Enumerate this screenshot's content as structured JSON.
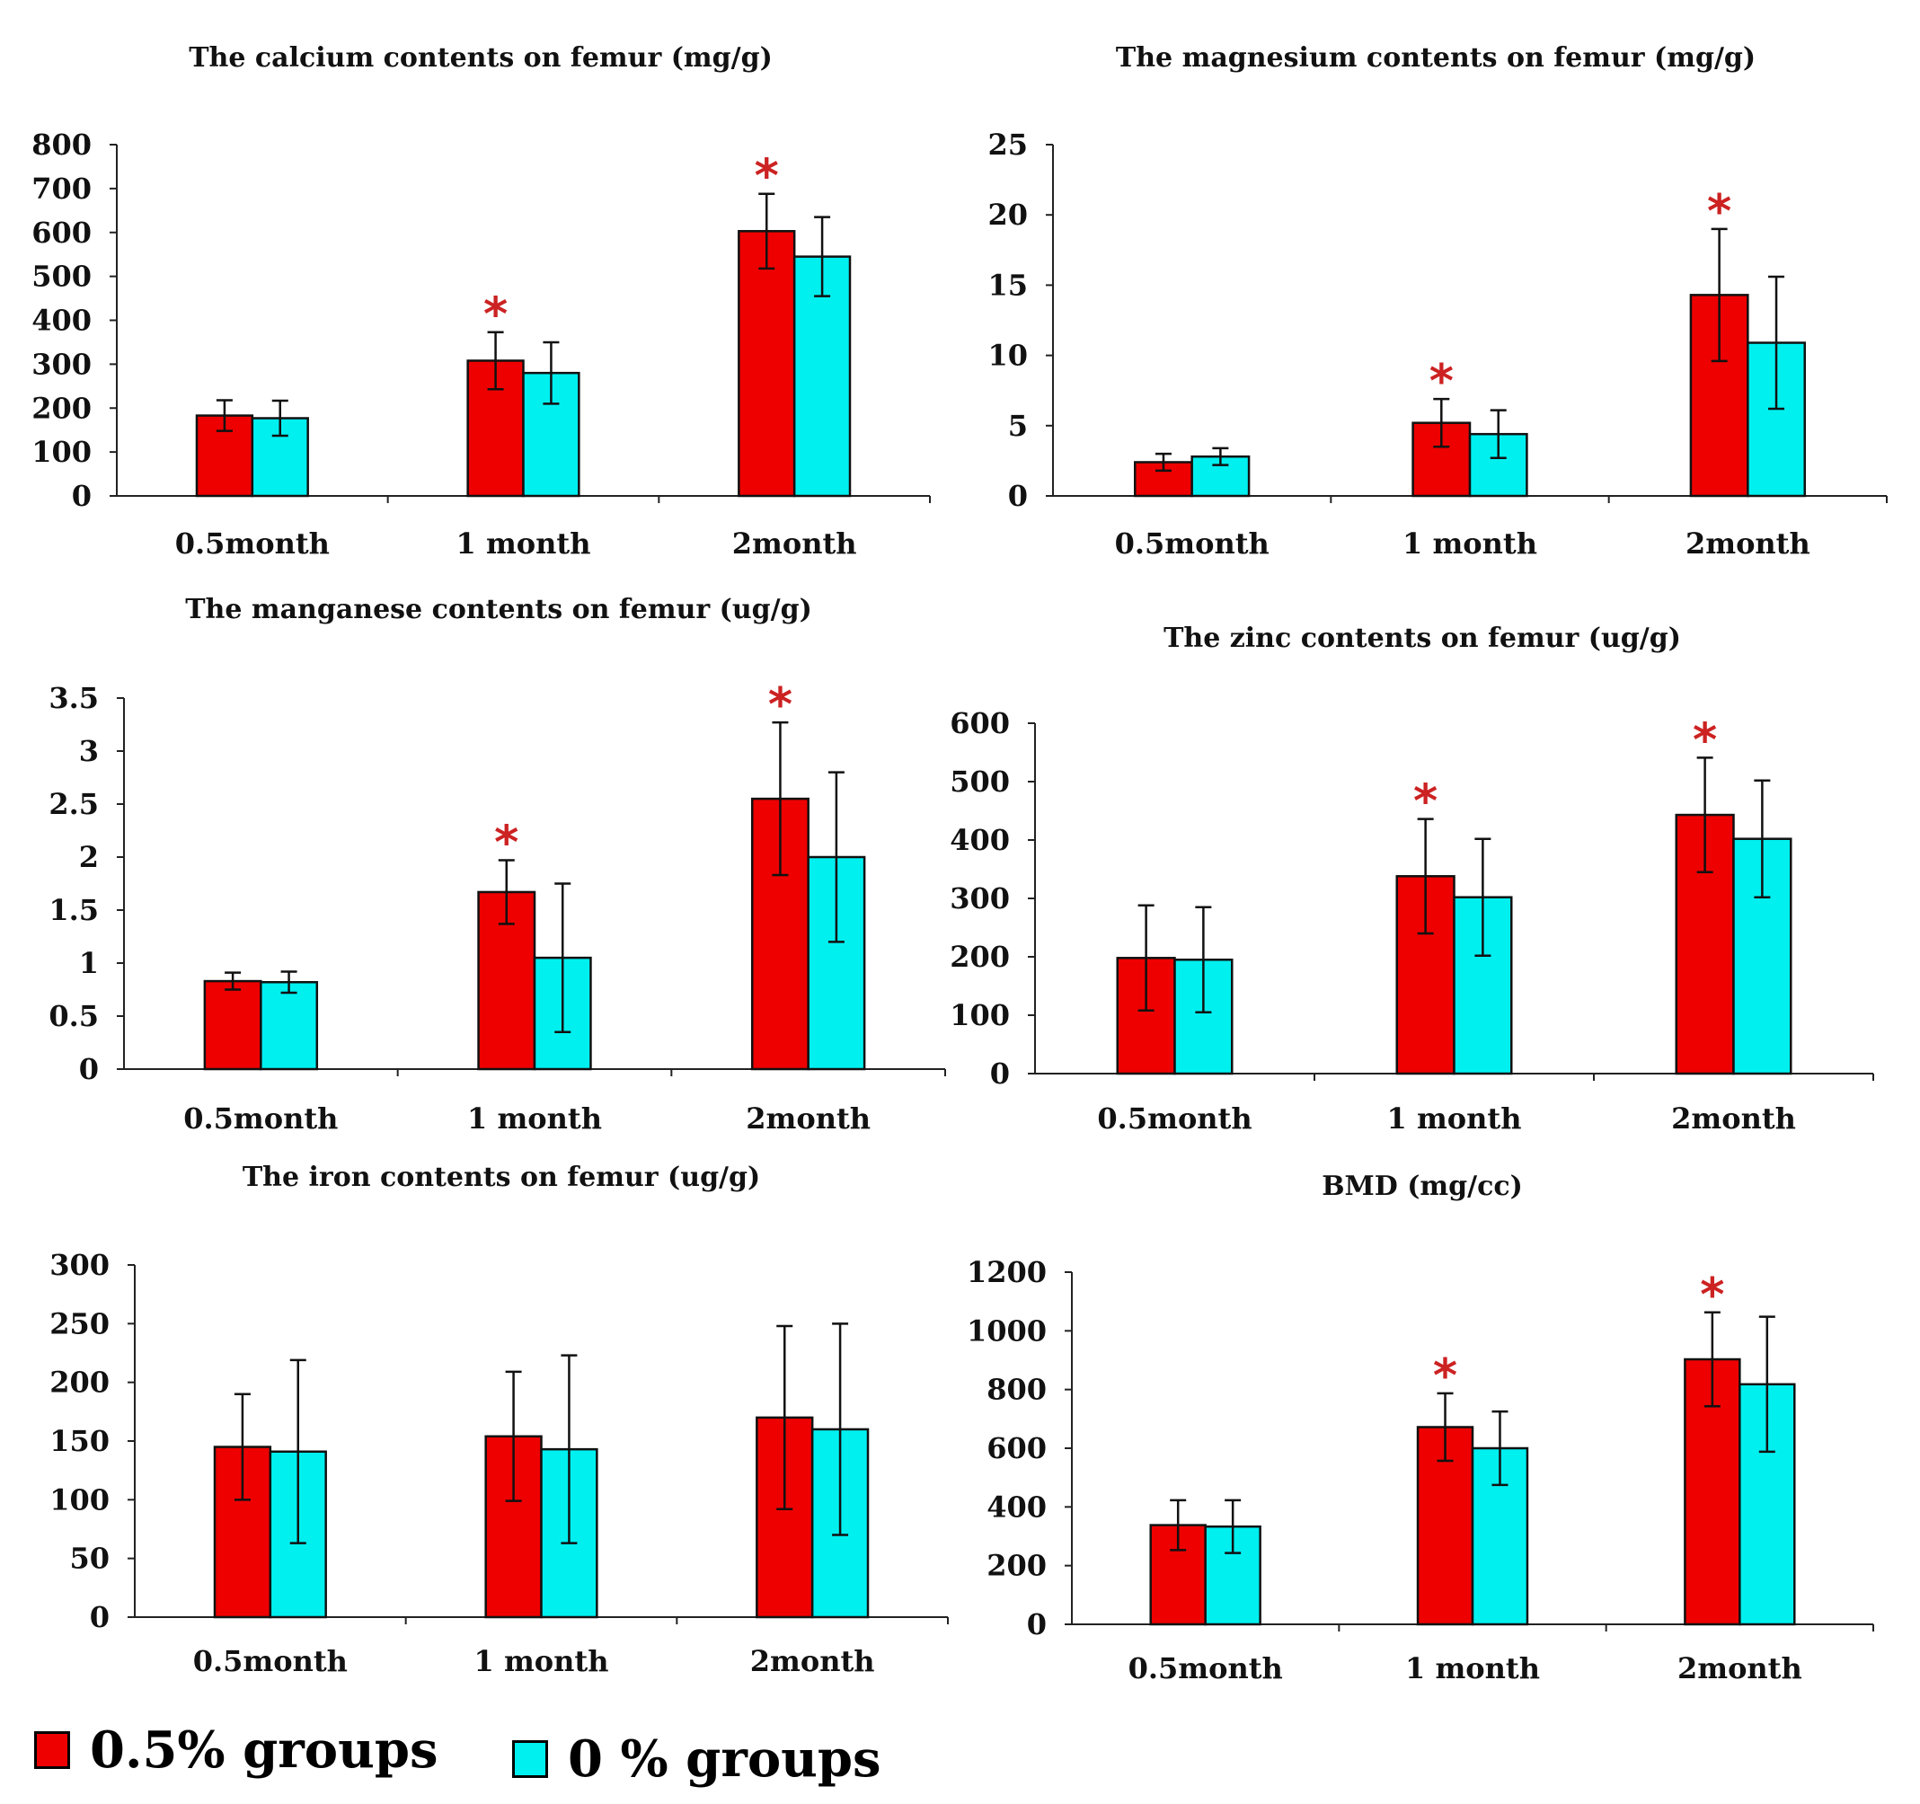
{
  "colors": {
    "series_05": "#ee0000",
    "series_0": "#00f0f0",
    "star": "#cc2222",
    "axis": "#222222"
  },
  "legend": {
    "items": [
      {
        "label": "0.5% groups",
        "color": "#ee0000"
      },
      {
        "label": "0 % groups",
        "color": "#00f0f0"
      }
    ]
  },
  "chart_data": [
    {
      "type": "bar",
      "title": "The calcium contents on femur (mg/g)",
      "categories": [
        "0.5month",
        "1 month",
        "2month"
      ],
      "yticks": [
        "0",
        "100",
        "200",
        "300",
        "400",
        "500",
        "600",
        "700",
        "800"
      ],
      "ylim": [
        0,
        800
      ],
      "series": [
        {
          "name": "0.5% groups",
          "values": [
            183,
            308,
            603
          ],
          "errors": [
            35,
            65,
            85
          ]
        },
        {
          "name": "0 % groups",
          "values": [
            177,
            280,
            545
          ],
          "errors": [
            40,
            70,
            90
          ]
        }
      ],
      "significance": [
        "",
        "*",
        "*"
      ]
    },
    {
      "type": "bar",
      "title": "The magnesium contents on femur (mg/g)",
      "categories": [
        "0.5month",
        "1 month",
        "2month"
      ],
      "yticks": [
        "0",
        "5",
        "10",
        "15",
        "20",
        "25"
      ],
      "ylim": [
        0,
        25
      ],
      "series": [
        {
          "name": "0.5% groups",
          "values": [
            2.4,
            5.2,
            14.3
          ],
          "errors": [
            0.6,
            1.7,
            4.7
          ]
        },
        {
          "name": "0 % groups",
          "values": [
            2.8,
            4.4,
            10.9
          ],
          "errors": [
            0.6,
            1.7,
            4.7
          ]
        }
      ],
      "significance": [
        "",
        "*",
        "*"
      ]
    },
    {
      "type": "bar",
      "title": "The manganese contents on femur (ug/g)",
      "categories": [
        "0.5month",
        "1 month",
        "2month"
      ],
      "yticks": [
        "0",
        "0.5",
        "1",
        "1.5",
        "2",
        "2.5",
        "3",
        "3.5"
      ],
      "ylim": [
        0,
        3.5
      ],
      "series": [
        {
          "name": "0.5% groups",
          "values": [
            0.83,
            1.67,
            2.55
          ],
          "errors": [
            0.08,
            0.3,
            0.72
          ]
        },
        {
          "name": "0 % groups",
          "values": [
            0.82,
            1.05,
            2.0
          ],
          "errors": [
            0.1,
            0.7,
            0.8
          ]
        }
      ],
      "significance": [
        "",
        "*",
        "*"
      ]
    },
    {
      "type": "bar",
      "title": "The zinc contents on femur (ug/g)",
      "categories": [
        "0.5month",
        "1 month",
        "2month"
      ],
      "yticks": [
        "0",
        "100",
        "200",
        "300",
        "400",
        "500",
        "600"
      ],
      "ylim": [
        0,
        600
      ],
      "series": [
        {
          "name": "0.5% groups",
          "values": [
            198,
            338,
            443
          ],
          "errors": [
            90,
            98,
            98
          ]
        },
        {
          "name": "0 % groups",
          "values": [
            195,
            302,
            402
          ],
          "errors": [
            90,
            100,
            100
          ]
        }
      ],
      "significance": [
        "",
        "*",
        "*"
      ]
    },
    {
      "type": "bar",
      "title": "The iron contents on femur (ug/g)",
      "categories": [
        "0.5month",
        "1 month",
        "2month"
      ],
      "yticks": [
        "0",
        "50",
        "100",
        "150",
        "200",
        "250",
        "300"
      ],
      "ylim": [
        0,
        300
      ],
      "series": [
        {
          "name": "0.5% groups",
          "values": [
            145,
            154,
            170
          ],
          "errors": [
            45,
            55,
            78
          ]
        },
        {
          "name": "0 % groups",
          "values": [
            141,
            143,
            160
          ],
          "errors": [
            78,
            80,
            90
          ]
        }
      ],
      "significance": [
        "",
        "",
        ""
      ]
    },
    {
      "type": "bar",
      "title": "BMD (mg/cc)",
      "categories": [
        "0.5month",
        "1 month",
        "2month"
      ],
      "yticks": [
        "0",
        "200",
        "400",
        "600",
        "800",
        "1000",
        "1200"
      ],
      "ylim": [
        0,
        1200
      ],
      "series": [
        {
          "name": "0.5% groups",
          "values": [
            338,
            672,
            903
          ],
          "errors": [
            85,
            115,
            160
          ]
        },
        {
          "name": "0 % groups",
          "values": [
            333,
            600,
            818
          ],
          "errors": [
            90,
            125,
            230
          ]
        }
      ],
      "significance": [
        "",
        "*",
        "*"
      ]
    }
  ]
}
